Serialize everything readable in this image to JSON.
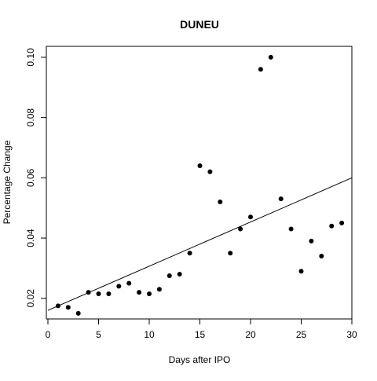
{
  "chart_data": {
    "type": "scatter",
    "title": "DUNEU",
    "xlabel": "Days after IPO",
    "ylabel": "Percentage Change",
    "xlim": [
      0,
      30
    ],
    "ylim": [
      0.012,
      0.102
    ],
    "x_ticks": [
      0,
      5,
      10,
      15,
      20,
      25,
      30
    ],
    "y_ticks": [
      0.02,
      0.04,
      0.06,
      0.08,
      0.1
    ],
    "x_tick_labels": [
      "0",
      "5",
      "10",
      "15",
      "20",
      "25",
      "30"
    ],
    "y_tick_labels": [
      "0.02",
      "0.04",
      "0.06",
      "0.08",
      "0.10"
    ],
    "grid": false,
    "legend": "none",
    "point_color": "#000000",
    "line_color": "#000000",
    "series": [
      {
        "x": [
          1,
          2,
          3,
          4,
          5,
          6,
          7,
          8,
          9,
          10,
          11,
          12,
          13,
          14,
          15,
          16,
          17,
          18,
          19,
          20,
          21,
          22,
          23,
          24,
          25,
          26,
          27,
          28,
          29
        ],
        "y": [
          0.0175,
          0.017,
          0.015,
          0.022,
          0.0215,
          0.0215,
          0.024,
          0.025,
          0.022,
          0.0215,
          0.023,
          0.0275,
          0.028,
          0.035,
          0.064,
          0.062,
          0.052,
          0.035,
          0.043,
          0.047,
          0.096,
          0.1,
          0.053,
          0.043,
          0.029,
          0.039,
          0.034,
          0.044,
          0.045
        ]
      }
    ],
    "trend_line": {
      "x": [
        0,
        30
      ],
      "y": [
        0.016,
        0.06
      ]
    }
  }
}
